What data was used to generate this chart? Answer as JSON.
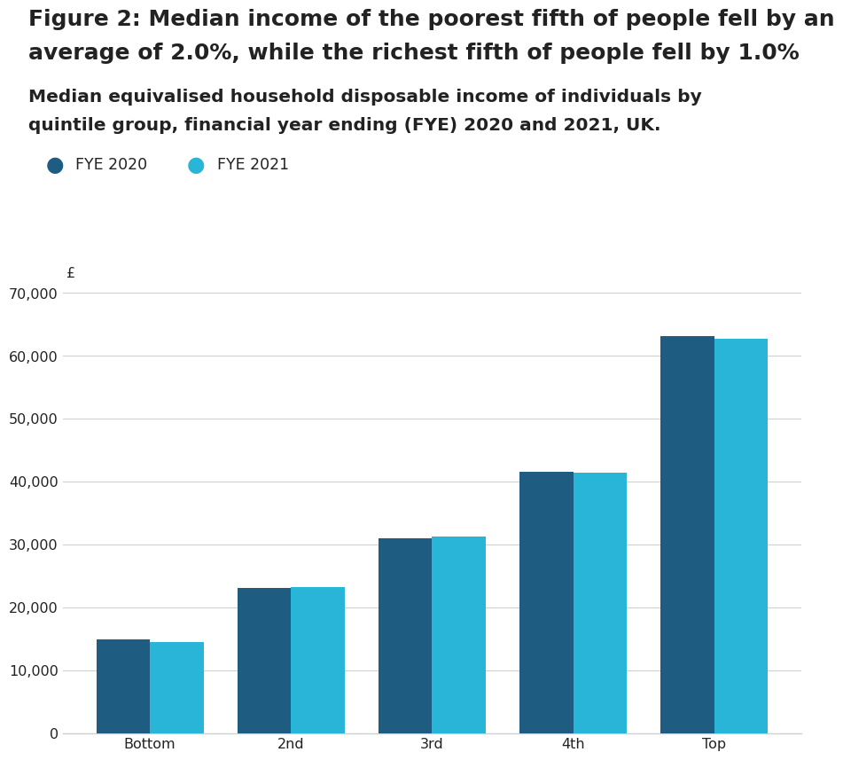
{
  "title_line1": "Figure 2: Median income of the poorest fifth of people fell by an",
  "title_line2": "average of 2.0%, while the richest fifth of people fell by 1.0%",
  "subtitle_line1": "Median equivalised household disposable income of individuals by",
  "subtitle_line2": "quintile group, financial year ending (FYE) 2020 and 2021, UK.",
  "categories": [
    "Bottom",
    "2nd",
    "3rd",
    "4th",
    "Top"
  ],
  "fye2020": [
    14900,
    23100,
    31000,
    41600,
    63200
  ],
  "fye2021": [
    14600,
    23300,
    31300,
    41400,
    62700
  ],
  "color_2020": "#1f5c82",
  "color_2021": "#29b5d8",
  "legend_labels": [
    "FYE 2020",
    "FYE 2021"
  ],
  "ylabel_symbol": "£",
  "ylim": [
    0,
    70000
  ],
  "yticks": [
    0,
    10000,
    20000,
    30000,
    40000,
    50000,
    60000,
    70000
  ],
  "background_color": "#ffffff",
  "grid_color": "#d0d0d0",
  "bar_width": 0.38,
  "title_fontsize": 18,
  "subtitle_fontsize": 14.5,
  "tick_fontsize": 11.5,
  "legend_fontsize": 12.5,
  "text_color": "#222222"
}
